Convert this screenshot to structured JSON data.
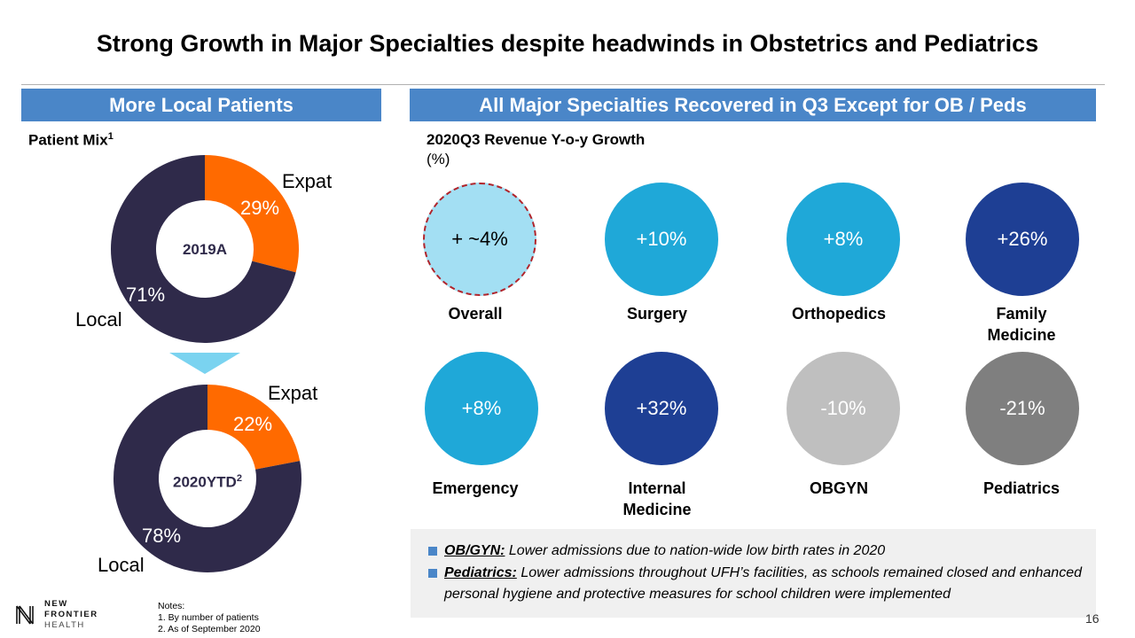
{
  "title": "Strong Growth in Major Specialties despite headwinds in Obstetrics and Pediatrics",
  "left_header": "More Local Patients",
  "right_header": "All Major Specialties Recovered in Q3 Except for OB / Peds",
  "patient_mix": {
    "title": "Patient Mix",
    "title_sup": "1"
  },
  "revenue_growth": {
    "title": "2020Q3 Revenue Y-o-y Growth",
    "unit": "(%)"
  },
  "colors": {
    "header_blue": "#4a86c8",
    "expat_orange": "#ff6a00",
    "local_navy": "#2f2a4a",
    "light_blue": "#a3dff3",
    "medium_blue": "#1fa8d8",
    "dark_blue": "#1e3f94",
    "light_gray": "#bfbfbf",
    "dark_gray": "#7f7f7f",
    "dashed_red": "#b0242b"
  },
  "chart_data": [
    {
      "type": "pie",
      "title": "2019A",
      "slices": [
        {
          "label": "Expat",
          "value": 29,
          "display": "29%"
        },
        {
          "label": "Local",
          "value": 71,
          "display": "71%"
        }
      ]
    },
    {
      "type": "pie",
      "title": "2020YTD",
      "title_sup": "2",
      "slices": [
        {
          "label": "Expat",
          "value": 22,
          "display": "22%"
        },
        {
          "label": "Local",
          "value": 78,
          "display": "78%"
        }
      ]
    },
    {
      "type": "table",
      "title": "2020Q3 Revenue Y-o-y Growth (%)",
      "categories": [
        "Overall",
        "Surgery",
        "Orthopedics",
        "Family Medicine",
        "Emergency",
        "Internal Medicine",
        "OBGYN",
        "Pediatrics"
      ],
      "values": [
        4,
        10,
        8,
        26,
        8,
        32,
        -10,
        -21
      ],
      "labels": [
        "+ ~4%",
        "+10%",
        "+8%",
        "+26%",
        "+8%",
        "+32%",
        "-10%",
        "-21%"
      ]
    }
  ],
  "bubbles": [
    {
      "label_line1": "Overall",
      "label_line2": "",
      "value": "+ ~4%"
    },
    {
      "label_line1": "Surgery",
      "label_line2": "",
      "value": "+10%"
    },
    {
      "label_line1": "Orthopedics",
      "label_line2": "",
      "value": "+8%"
    },
    {
      "label_line1": "Family",
      "label_line2": "Medicine",
      "value": "+26%"
    },
    {
      "label_line1": "Emergency",
      "label_line2": "",
      "value": "+8%"
    },
    {
      "label_line1": "Internal",
      "label_line2": "Medicine",
      "value": "+32%"
    },
    {
      "label_line1": "OBGYN",
      "label_line2": "",
      "value": "-10%"
    },
    {
      "label_line1": "Pediatrics",
      "label_line2": "",
      "value": "-21%"
    }
  ],
  "notes_box": [
    {
      "label": "OB/GYN:",
      "text": " Lower admissions due to nation-wide low birth rates in 2020"
    },
    {
      "label": "Pediatrics:",
      "text": " Lower admissions throughout UFH’s facilities, as schools remained closed and enhanced personal hygiene and protective measures for school children were implemented"
    }
  ],
  "footnotes": {
    "heading": "Notes:",
    "items": [
      "1. By number of patients",
      "2. As of September 2020"
    ]
  },
  "logo": {
    "line1": "NEW",
    "line2": "FRONTIER",
    "line3": "HEALTH"
  },
  "page_number": "16"
}
